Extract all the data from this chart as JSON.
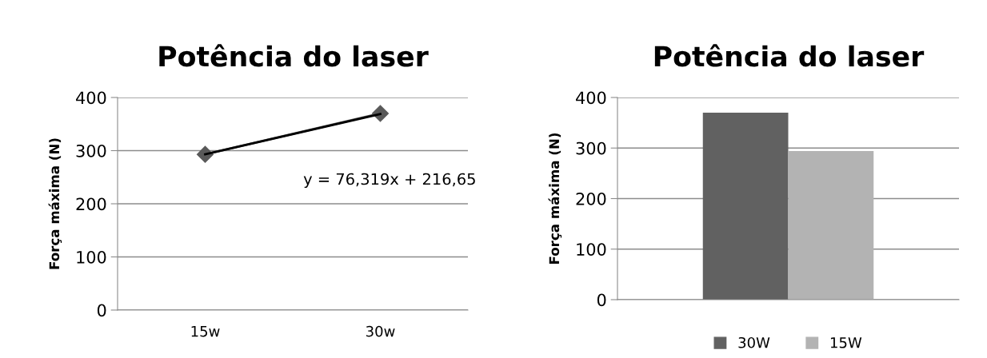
{
  "chart_data": [
    {
      "type": "line",
      "title": "Potência do laser",
      "ylabel": "Força máxima (N)",
      "categories": [
        "15w",
        "30w"
      ],
      "series": [
        {
          "color": "#595959",
          "values": [
            293,
            370
          ],
          "marker": "diamond"
        },
        {
          "color": "#000000",
          "values": [
            293,
            369
          ],
          "marker": "none"
        }
      ],
      "ylim": [
        0,
        400
      ],
      "yticks": [
        0,
        100,
        200,
        300,
        400
      ],
      "grid": "y",
      "annotations": [
        "y = 76,319x + 216,65"
      ]
    },
    {
      "type": "bar",
      "title": "Potência do laser",
      "ylabel": "Força máxima (N)",
      "categories": [
        null
      ],
      "series": [
        {
          "name": "30W",
          "color": "#616161",
          "values": [
            370
          ]
        },
        {
          "name": "15W",
          "color": "#b3b3b3",
          "values": [
            294
          ]
        }
      ],
      "ylim": [
        0,
        400
      ],
      "yticks": [
        0,
        100,
        200,
        300,
        400
      ],
      "grid": "y",
      "legend": "bottom"
    }
  ]
}
